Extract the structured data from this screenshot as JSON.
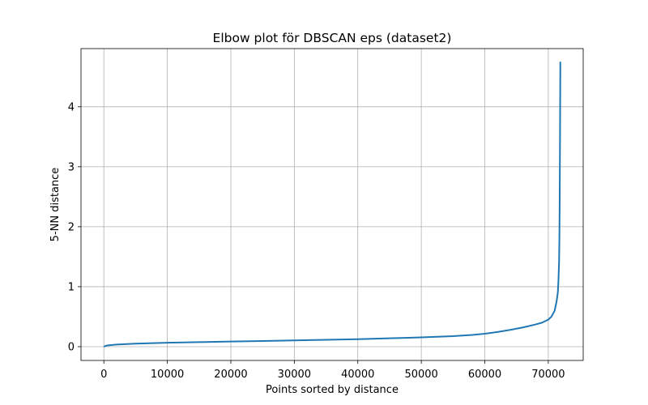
{
  "chart_data": {
    "type": "line",
    "title": "Elbow plot för DBSCAN eps (dataset2)",
    "xlabel": "Points sorted by distance",
    "ylabel": "5-NN distance",
    "xlim": [
      -3600,
      75500
    ],
    "ylim": [
      -0.23,
      4.97
    ],
    "xticks": [
      0,
      10000,
      20000,
      30000,
      40000,
      50000,
      60000,
      70000
    ],
    "xtick_labels": [
      "0",
      "10000",
      "20000",
      "30000",
      "40000",
      "50000",
      "60000",
      "70000"
    ],
    "yticks": [
      0,
      1,
      2,
      3,
      4
    ],
    "ytick_labels": [
      "0",
      "1",
      "2",
      "3",
      "4"
    ],
    "grid": true,
    "legend": "none",
    "colors": {
      "line": "#1f77b4",
      "grid": "#b0b0b0",
      "axes": "#000000"
    },
    "series": [
      {
        "x": [
          0,
          500,
          1000,
          2000,
          3000,
          5000,
          10000,
          15000,
          20000,
          25000,
          30000,
          35000,
          40000,
          45000,
          50000,
          55000,
          58000,
          60000,
          62000,
          64000,
          66000,
          68000,
          69000,
          70000,
          70500,
          71000,
          71300,
          71500,
          71600,
          71700,
          71750,
          71800,
          71850,
          71900
        ],
        "y": [
          0.0,
          0.02,
          0.025,
          0.035,
          0.04,
          0.05,
          0.065,
          0.075,
          0.085,
          0.095,
          0.105,
          0.115,
          0.125,
          0.14,
          0.155,
          0.175,
          0.195,
          0.215,
          0.245,
          0.28,
          0.32,
          0.37,
          0.4,
          0.45,
          0.5,
          0.6,
          0.75,
          0.9,
          1.1,
          1.4,
          1.8,
          2.5,
          3.5,
          4.75
        ]
      }
    ]
  }
}
